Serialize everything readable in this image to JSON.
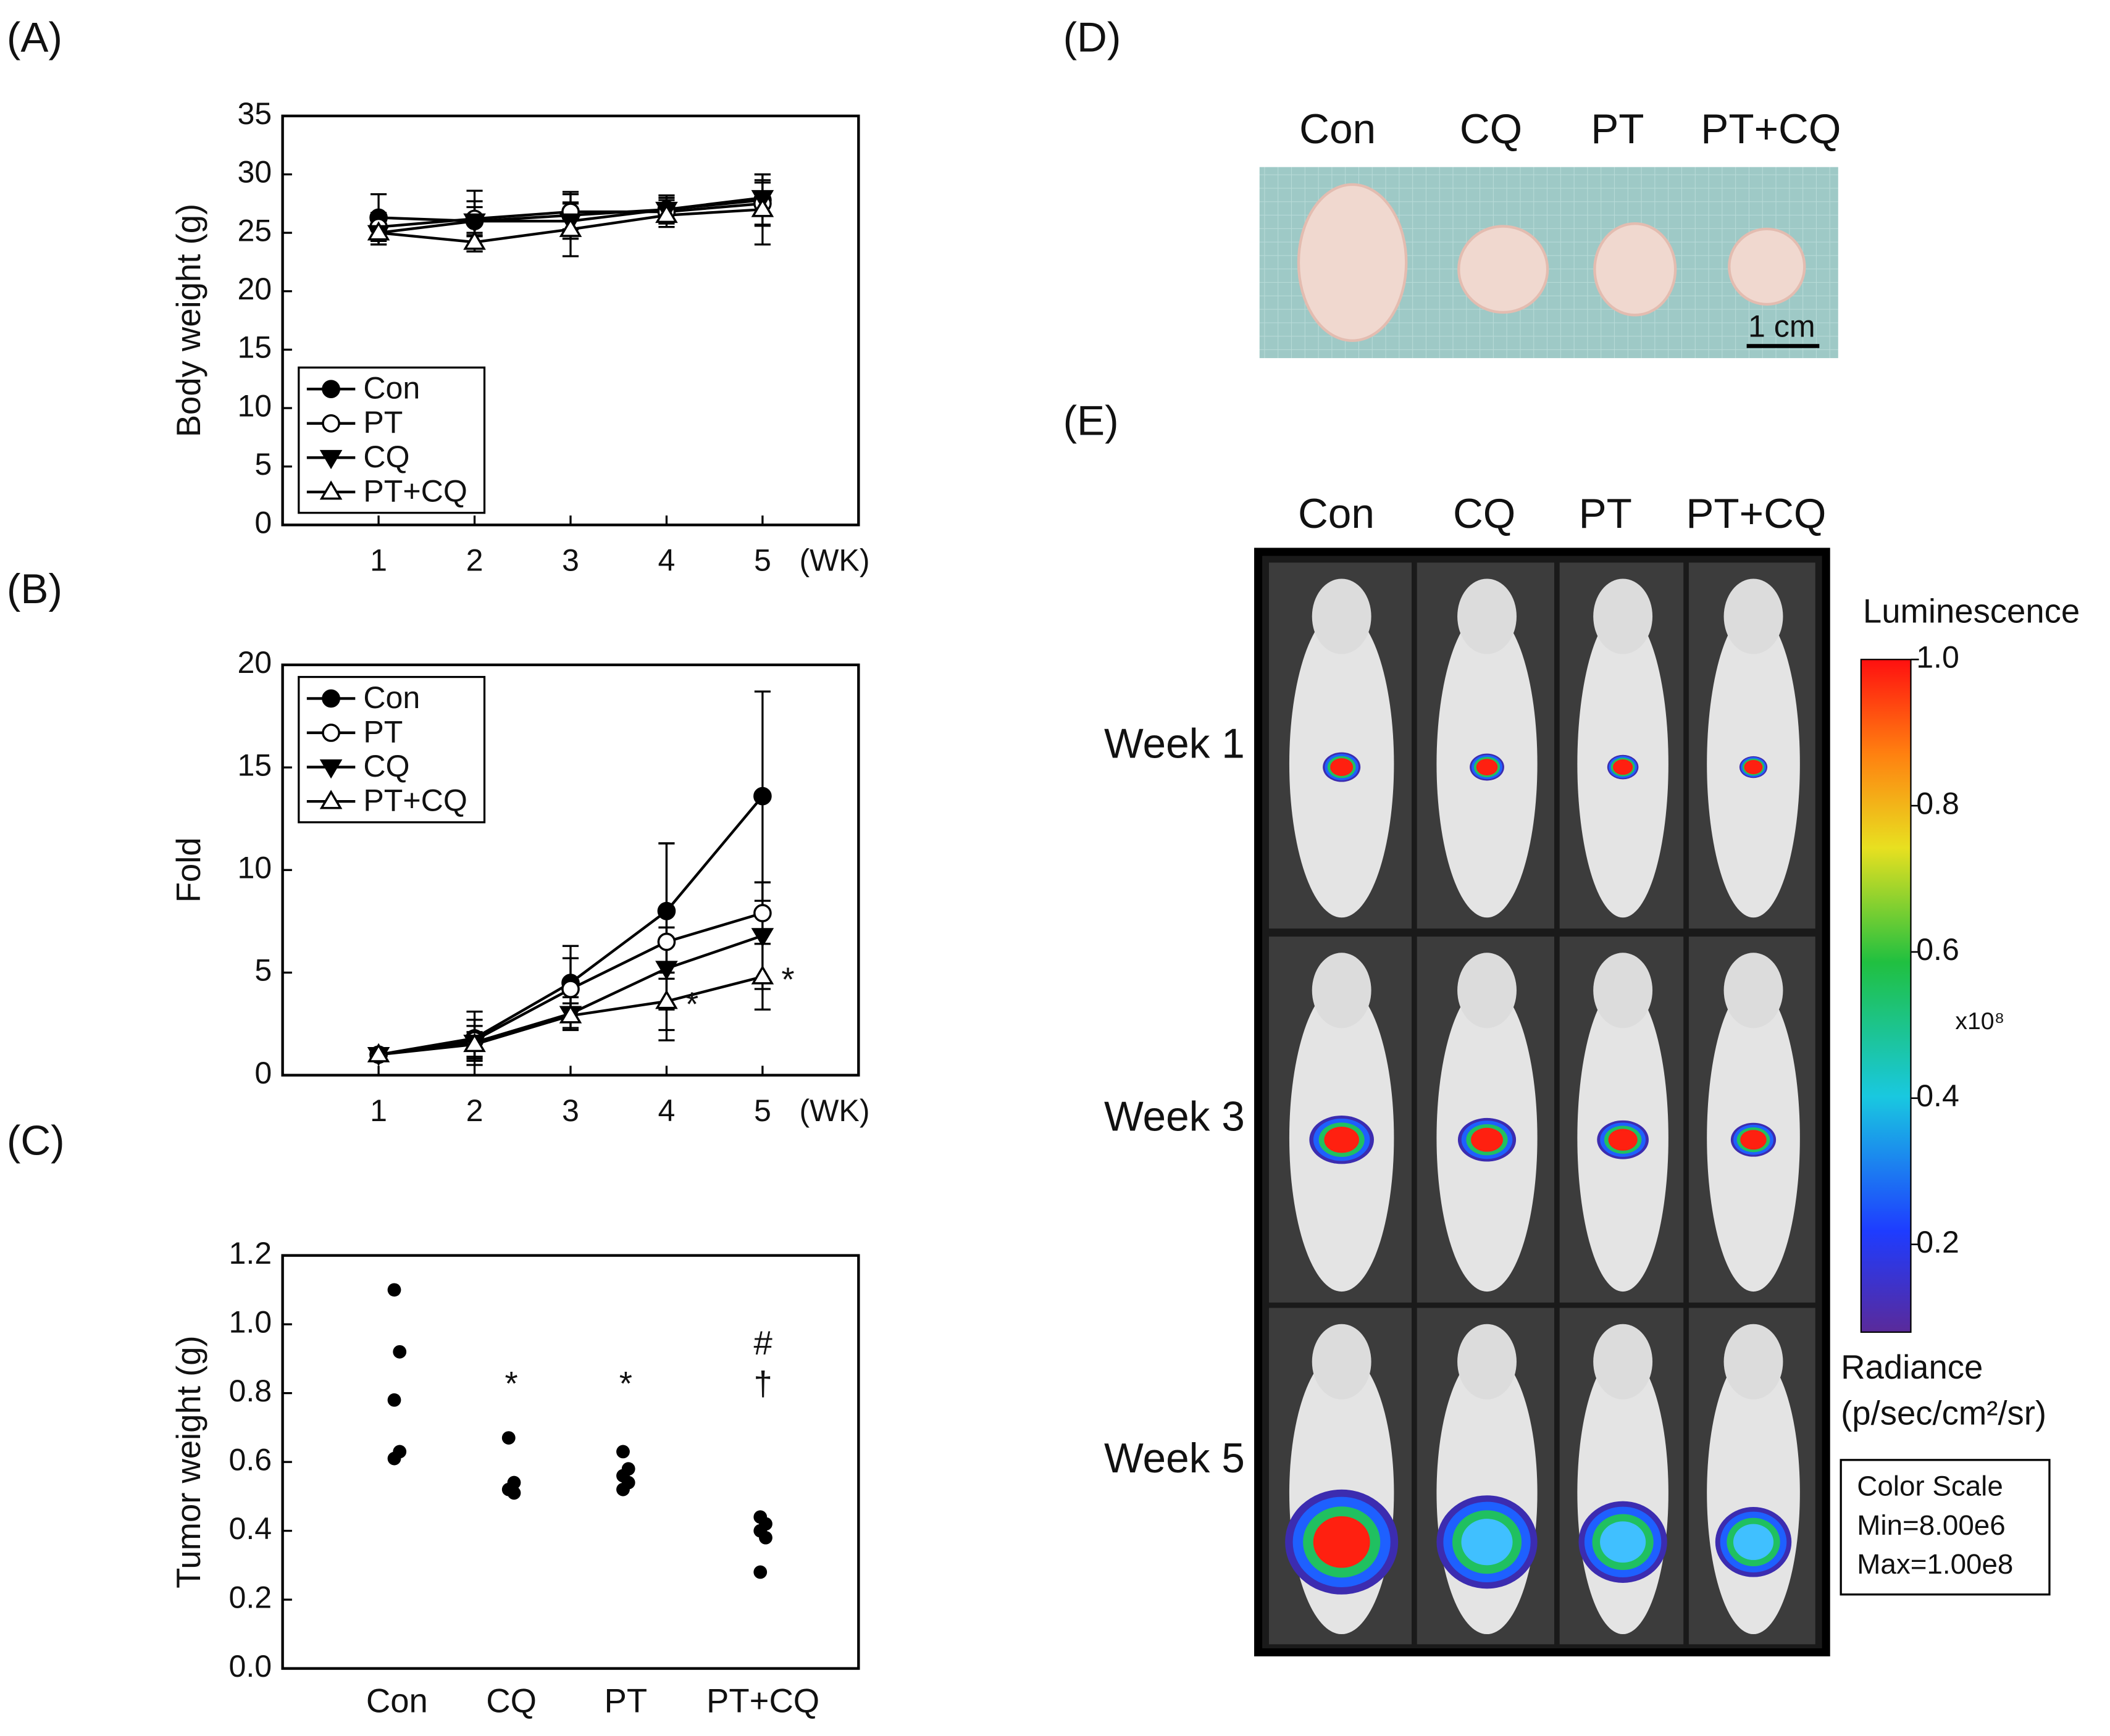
{
  "chart_data": [
    {
      "type": "line",
      "panel": "(A)",
      "y_label": "Body weight (g)",
      "x_unit": "(WK)",
      "x": [
        1,
        2,
        3,
        4,
        5
      ],
      "xlim": [
        0,
        6
      ],
      "xticks": [
        1,
        2,
        3,
        4,
        5
      ],
      "ylim": [
        0,
        35
      ],
      "yticks": [
        0,
        5,
        10,
        15,
        20,
        25,
        30,
        35
      ],
      "legend": "lower left",
      "series": [
        {
          "name": "Con",
          "marker": "filled-circle",
          "color": "#000000",
          "values": [
            26.3,
            26.0,
            26.5,
            27.0,
            27.8
          ],
          "errors": [
            2.0,
            2.6,
            2.0,
            1.2,
            2.2
          ]
        },
        {
          "name": "PT",
          "marker": "open-circle",
          "color": "#000000",
          "values": [
            25.5,
            26.2,
            26.8,
            26.8,
            27.5
          ],
          "errors": [
            1.2,
            1.5,
            1.5,
            1.0,
            1.8
          ]
        },
        {
          "name": "CQ",
          "marker": "filled-down-triangle",
          "color": "#000000",
          "values": [
            25.0,
            26.0,
            26.0,
            27.0,
            28.0
          ],
          "errors": [
            1.0,
            1.2,
            1.5,
            1.0,
            1.5
          ]
        },
        {
          "name": "PT+CQ",
          "marker": "open-up-triangle",
          "color": "#000000",
          "values": [
            25.0,
            24.2,
            25.3,
            26.5,
            27.0
          ],
          "errors": [
            1.0,
            0.8,
            2.3,
            1.0,
            3.0
          ]
        }
      ]
    },
    {
      "type": "line",
      "panel": "(B)",
      "y_label": "Fold",
      "x_unit": "(WK)",
      "x": [
        1,
        2,
        3,
        4,
        5
      ],
      "xlim": [
        0,
        6
      ],
      "xticks": [
        1,
        2,
        3,
        4,
        5
      ],
      "ylim": [
        0,
        20
      ],
      "yticks": [
        0,
        5,
        10,
        15,
        20
      ],
      "legend": "upper left",
      "series": [
        {
          "name": "Con",
          "marker": "filled-circle",
          "color": "#000000",
          "values": [
            1.0,
            1.8,
            4.5,
            8.0,
            13.6
          ],
          "errors": [
            0.2,
            1.3,
            1.8,
            3.3,
            5.1
          ]
        },
        {
          "name": "PT",
          "marker": "open-circle",
          "color": "#000000",
          "values": [
            1.0,
            1.7,
            4.2,
            6.5,
            7.9
          ],
          "errors": [
            0.2,
            1.0,
            1.5,
            4.8,
            1.5
          ]
        },
        {
          "name": "CQ",
          "marker": "filled-down-triangle",
          "color": "#000000",
          "values": [
            1.0,
            1.6,
            3.0,
            5.2,
            6.8
          ],
          "errors": [
            0.2,
            0.8,
            0.8,
            2.0,
            2.6
          ]
        },
        {
          "name": "PT+CQ",
          "marker": "open-up-triangle",
          "color": "#000000",
          "values": [
            1.0,
            1.5,
            2.9,
            3.6,
            4.8
          ],
          "errors": [
            0.2,
            0.6,
            0.6,
            1.4,
            1.6
          ],
          "annotations": [
            {
              "index": 3,
              "text": "*"
            },
            {
              "index": 4,
              "text": "*"
            }
          ]
        }
      ]
    },
    {
      "type": "strip",
      "panel": "(C)",
      "y_label": "Tumor weight (g)",
      "categories": [
        "Con",
        "CQ",
        "PT",
        "PT+CQ"
      ],
      "values": [
        [
          1.1,
          0.92,
          0.78,
          0.63,
          0.61
        ],
        [
          0.67,
          0.54,
          0.52,
          0.51
        ],
        [
          0.63,
          0.58,
          0.56,
          0.54,
          0.52
        ],
        [
          0.44,
          0.42,
          0.4,
          0.38,
          0.28
        ]
      ],
      "color": "#000000",
      "ylim": [
        0,
        1.2
      ],
      "yticks": [
        {
          "value": 0,
          "label": "0.0"
        },
        0.2,
        0.4,
        0.6,
        0.8,
        {
          "value": 1,
          "label": "1.0"
        },
        1.2
      ],
      "annotations": [
        {
          "category": 1,
          "text": "*"
        },
        {
          "category": 2,
          "text": "*"
        },
        {
          "category": 3,
          "text": "#"
        },
        {
          "category": 3,
          "text": "†"
        }
      ]
    }
  ],
  "photo_d": {
    "panel": "(D)",
    "columns": [
      "Con",
      "CQ",
      "PT",
      "PT+CQ"
    ],
    "scale_bar": "1 cm"
  },
  "imaging_e": {
    "panel": "(E)",
    "columns": [
      "Con",
      "CQ",
      "PT",
      "PT+CQ"
    ],
    "rows": [
      "Week 1",
      "Week 3",
      "Week 5"
    ],
    "colorbar": {
      "title": "Luminescence",
      "lim": [
        0.08,
        1.0
      ],
      "ticks": [
        {
          "value": 1,
          "label": "1.0"
        },
        0.8,
        0.6,
        0.4,
        0.2
      ],
      "multiplier": "x10⁸",
      "unit_lines": [
        "Radiance",
        "(p/sec/cm²/sr)"
      ]
    },
    "scale_box": [
      "Color Scale",
      "Min=8.00e6",
      "Max=1.00e8"
    ]
  }
}
